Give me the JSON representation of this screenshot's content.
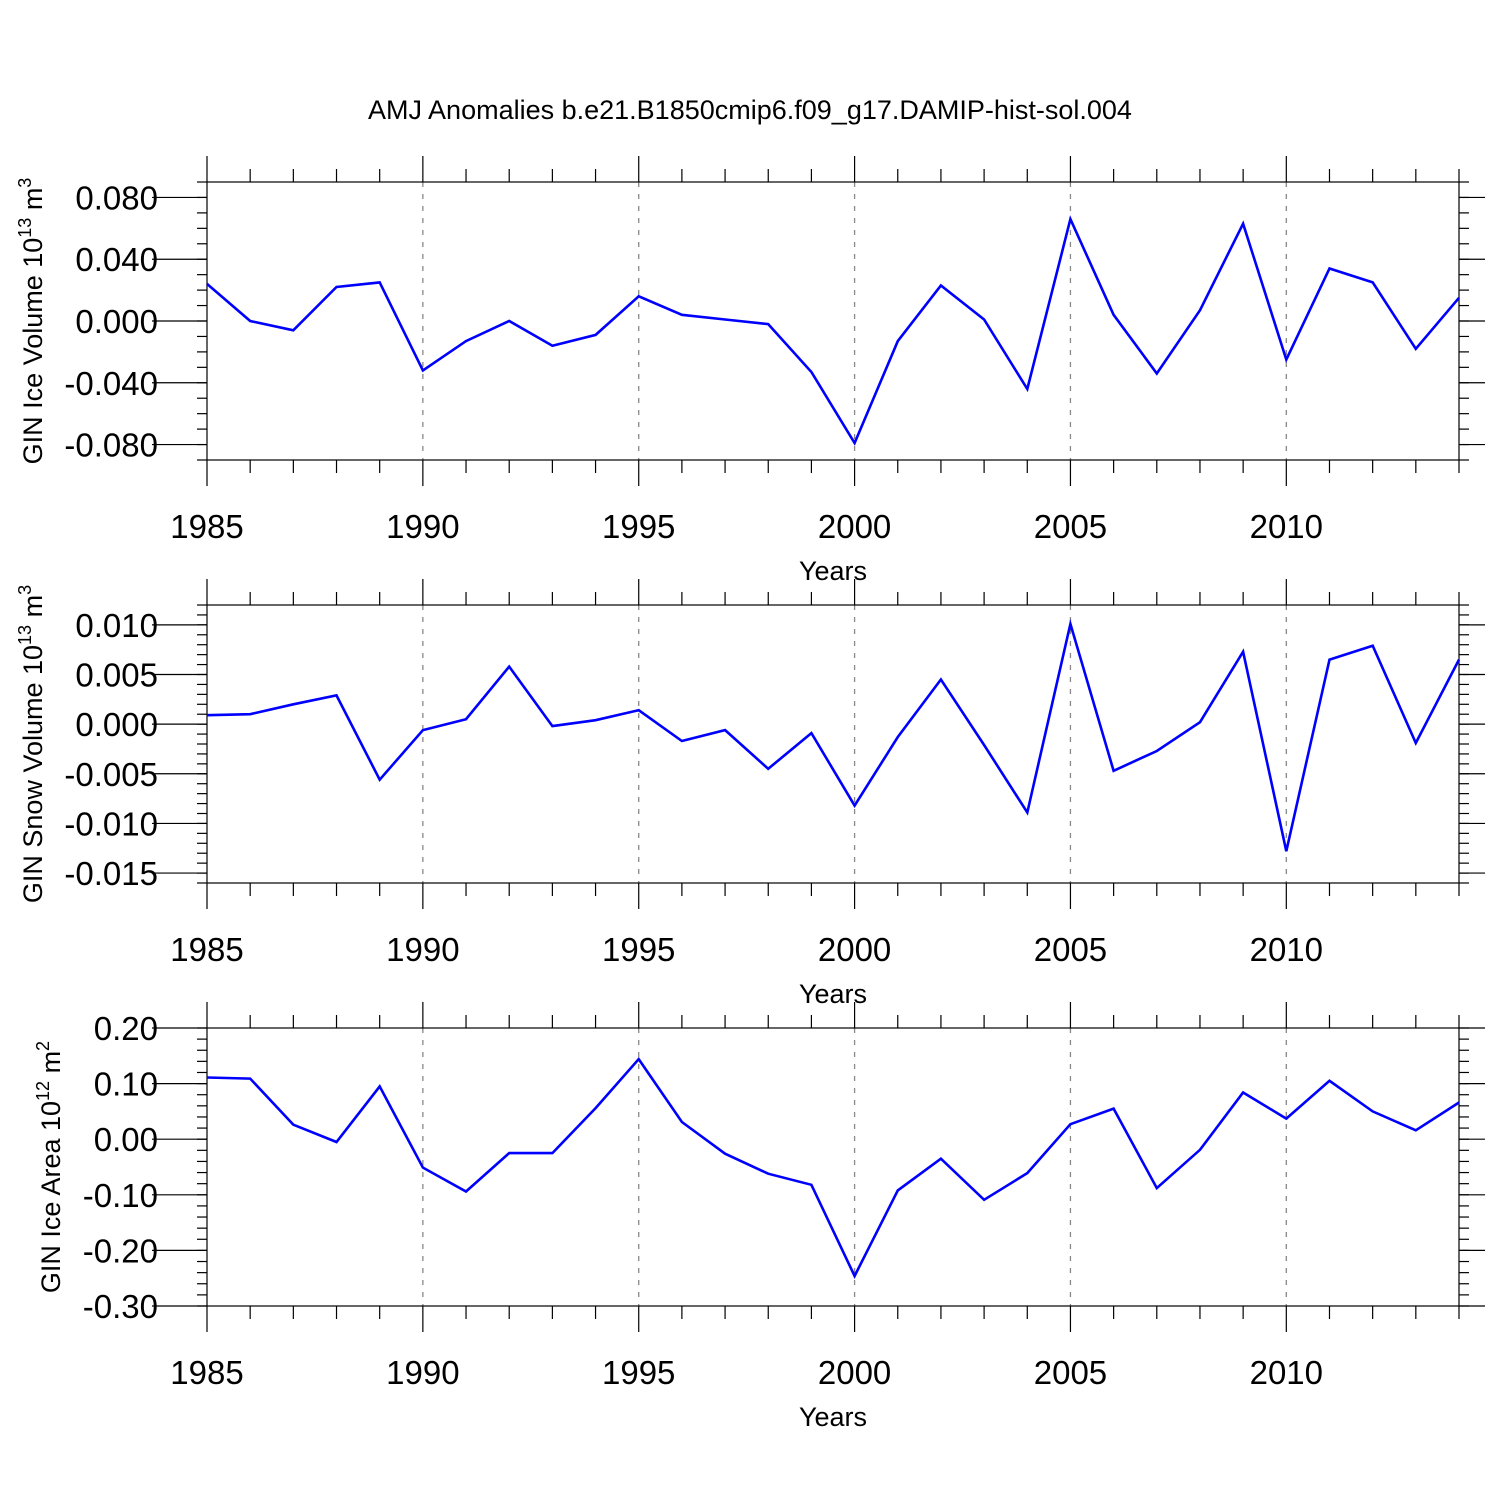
{
  "figure": {
    "title": "AMJ Anomalies b.e21.B1850cmip6.f09_g17.DAMIP-hist-sol.004"
  },
  "colors": {
    "series": "#0000ff",
    "axes": "#000000",
    "grid": "#888888"
  },
  "chart_data": [
    {
      "type": "line",
      "ylabel": "GIN Ice Volume 10",
      "ylabel_exponent": "13",
      "ylabel_unit": " m",
      "ylabel_unit_exponent": "3",
      "xlabel": "Years",
      "xlim": [
        1985,
        2014
      ],
      "ylim": [
        -0.09,
        0.09
      ],
      "y_ticks": [
        -0.08,
        -0.04,
        0.0,
        0.04,
        0.08
      ],
      "y_tick_labels": [
        "-0.080",
        "-0.040",
        "0.000",
        "0.040",
        "0.080"
      ],
      "y_minor_step": 0.01,
      "x_ticks": [
        1985,
        1990,
        1995,
        2000,
        2005,
        2010
      ],
      "x_tick_labels": [
        "1985",
        "1990",
        "1995",
        "2000",
        "2005",
        "2010"
      ],
      "grid": "vertical dashed at major x ticks",
      "series": [
        {
          "x": [
            1985,
            1986,
            1987,
            1988,
            1989,
            1990,
            1991,
            1992,
            1993,
            1994,
            1995,
            1996,
            1997,
            1998,
            1999,
            2000,
            2001,
            2002,
            2003,
            2004,
            2005,
            2006,
            2007,
            2008,
            2009,
            2010,
            2011,
            2012,
            2013,
            2014
          ],
          "values": [
            0.024,
            0.0,
            -0.006,
            0.022,
            0.025,
            -0.032,
            -0.013,
            0.0,
            -0.016,
            -0.009,
            0.016,
            0.004,
            0.001,
            -0.002,
            -0.033,
            -0.079,
            -0.013,
            0.023,
            0.001,
            -0.044,
            0.066,
            0.004,
            -0.034,
            0.007,
            0.063,
            -0.025,
            0.034,
            0.025,
            -0.018,
            0.015
          ]
        }
      ]
    },
    {
      "type": "line",
      "ylabel": "GIN Snow Volume 10",
      "ylabel_exponent": "13",
      "ylabel_unit": " m",
      "ylabel_unit_exponent": "3",
      "xlabel": "Years",
      "xlim": [
        1985,
        2014
      ],
      "ylim": [
        -0.016,
        0.012
      ],
      "y_ticks": [
        -0.015,
        -0.01,
        -0.005,
        0.0,
        0.005,
        0.01
      ],
      "y_tick_labels": [
        "-0.015",
        "-0.010",
        "-0.005",
        "0.000",
        "0.005",
        "0.010"
      ],
      "y_minor_step": 0.001,
      "x_ticks": [
        1985,
        1990,
        1995,
        2000,
        2005,
        2010
      ],
      "x_tick_labels": [
        "1985",
        "1990",
        "1995",
        "2000",
        "2005",
        "2010"
      ],
      "grid": "vertical dashed at major x ticks",
      "series": [
        {
          "x": [
            1985,
            1986,
            1987,
            1988,
            1989,
            1990,
            1991,
            1992,
            1993,
            1994,
            1995,
            1996,
            1997,
            1998,
            1999,
            2000,
            2001,
            2002,
            2003,
            2004,
            2005,
            2006,
            2007,
            2008,
            2009,
            2010,
            2011,
            2012,
            2013,
            2014
          ],
          "values": [
            0.0009,
            0.001,
            0.002,
            0.0029,
            -0.0056,
            -0.0006,
            0.0005,
            0.0058,
            -0.0002,
            0.0004,
            0.0014,
            -0.0017,
            -0.0006,
            -0.0045,
            -0.0009,
            -0.0082,
            -0.0013,
            0.0045,
            -0.0021,
            -0.0089,
            0.0101,
            -0.0047,
            -0.0027,
            0.0002,
            0.0073,
            -0.0128,
            0.0065,
            0.0079,
            -0.0019,
            0.0065
          ]
        }
      ]
    },
    {
      "type": "line",
      "ylabel": "GIN Ice Area 10",
      "ylabel_exponent": "12",
      "ylabel_unit": " m",
      "ylabel_unit_exponent": "2",
      "xlabel": "Years",
      "xlim": [
        1985,
        2014
      ],
      "ylim": [
        -0.3,
        0.2
      ],
      "y_ticks": [
        -0.3,
        -0.2,
        -0.1,
        0.0,
        0.1,
        0.2
      ],
      "y_tick_labels": [
        "-0.30",
        "-0.20",
        "-0.10",
        "0.00",
        "0.10",
        "0.20"
      ],
      "y_minor_step": 0.02,
      "x_ticks": [
        1985,
        1990,
        1995,
        2000,
        2005,
        2010
      ],
      "x_tick_labels": [
        "1985",
        "1990",
        "1995",
        "2000",
        "2005",
        "2010"
      ],
      "grid": "vertical dashed at major x ticks",
      "series": [
        {
          "x": [
            1985,
            1986,
            1987,
            1988,
            1989,
            1990,
            1991,
            1992,
            1993,
            1994,
            1995,
            1996,
            1997,
            1998,
            1999,
            2000,
            2001,
            2002,
            2003,
            2004,
            2005,
            2006,
            2007,
            2008,
            2009,
            2010,
            2011,
            2012,
            2013,
            2014
          ],
          "values": [
            0.111,
            0.109,
            0.026,
            -0.005,
            0.095,
            -0.051,
            -0.094,
            -0.025,
            -0.025,
            0.056,
            0.144,
            0.031,
            -0.026,
            -0.062,
            -0.082,
            -0.246,
            -0.092,
            -0.035,
            -0.109,
            -0.061,
            0.027,
            0.055,
            -0.088,
            -0.019,
            0.084,
            0.037,
            0.105,
            0.05,
            0.016,
            0.066
          ]
        }
      ]
    }
  ]
}
